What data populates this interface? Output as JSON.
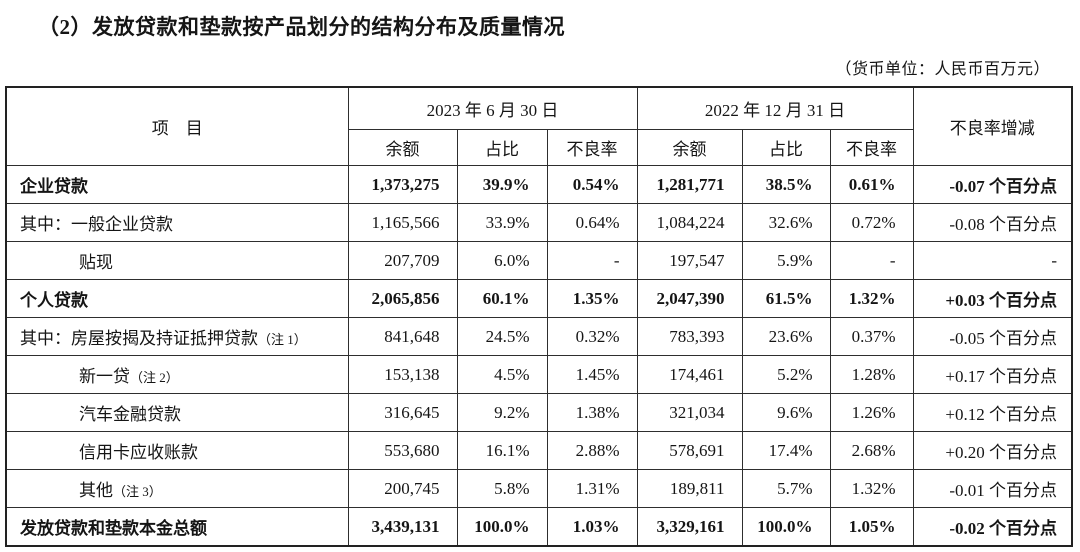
{
  "title": "（2）发放贷款和垫款按产品划分的结构分布及质量情况",
  "unit_note": "（货币单位：人民币百万元）",
  "table": {
    "item_header": "项　目",
    "period_2023": "2023 年 6 月 30 日",
    "period_2022": "2022 年 12 月 31 日",
    "change_header": "不良率增减",
    "sub_headers": [
      "余额",
      "占比",
      "不良率",
      "余额",
      "占比",
      "不良率"
    ],
    "rows": [
      {
        "label": "企业贷款",
        "note": "",
        "indent": 0,
        "bold": true,
        "values": [
          "1,373,275",
          "39.9%",
          "0.54%",
          "1,281,771",
          "38.5%",
          "0.61%",
          "-0.07 个百分点"
        ]
      },
      {
        "label": "其中：一般企业贷款",
        "note": "",
        "indent": 0,
        "bold": false,
        "values": [
          "1,165,566",
          "33.9%",
          "0.64%",
          "1,084,224",
          "32.6%",
          "0.72%",
          "-0.08 个百分点"
        ]
      },
      {
        "label": "贴现",
        "note": "",
        "indent": 1,
        "bold": false,
        "values": [
          "207,709",
          "6.0%",
          "-",
          "197,547",
          "5.9%",
          "-",
          "-"
        ]
      },
      {
        "label": "个人贷款",
        "note": "",
        "indent": 0,
        "bold": true,
        "values": [
          "2,065,856",
          "60.1%",
          "1.35%",
          "2,047,390",
          "61.5%",
          "1.32%",
          "+0.03 个百分点"
        ]
      },
      {
        "label": "其中：房屋按揭及持证抵押贷款",
        "note": "（注 1）",
        "indent": 0,
        "bold": false,
        "values": [
          "841,648",
          "24.5%",
          "0.32%",
          "783,393",
          "23.6%",
          "0.37%",
          "-0.05 个百分点"
        ]
      },
      {
        "label": "新一贷",
        "note": "（注 2）",
        "indent": 1,
        "bold": false,
        "values": [
          "153,138",
          "4.5%",
          "1.45%",
          "174,461",
          "5.2%",
          "1.28%",
          "+0.17 个百分点"
        ]
      },
      {
        "label": "汽车金融贷款",
        "note": "",
        "indent": 1,
        "bold": false,
        "values": [
          "316,645",
          "9.2%",
          "1.38%",
          "321,034",
          "9.6%",
          "1.26%",
          "+0.12 个百分点"
        ]
      },
      {
        "label": "信用卡应收账款",
        "note": "",
        "indent": 1,
        "bold": false,
        "values": [
          "553,680",
          "16.1%",
          "2.88%",
          "578,691",
          "17.4%",
          "2.68%",
          "+0.20 个百分点"
        ]
      },
      {
        "label": "其他",
        "note": "（注 3）",
        "indent": 1,
        "bold": false,
        "values": [
          "200,745",
          "5.8%",
          "1.31%",
          "189,811",
          "5.7%",
          "1.32%",
          "-0.01 个百分点"
        ]
      },
      {
        "label": "发放贷款和垫款本金总额",
        "note": "",
        "indent": 0,
        "bold": true,
        "values": [
          "3,439,131",
          "100.0%",
          "1.03%",
          "3,329,161",
          "100.0%",
          "1.05%",
          "-0.02 个百分点"
        ]
      }
    ]
  }
}
